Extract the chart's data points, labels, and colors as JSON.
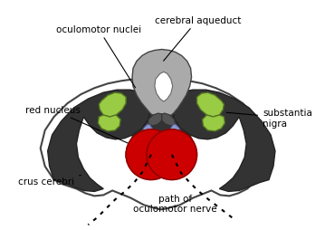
{
  "background_color": "#ffffff",
  "outline_color": "#555555",
  "dark_region_color": "#333333",
  "red_nucleus_color": "#cc0000",
  "green_region_color": "#99cc44",
  "blue_region_color": "#8888cc",
  "gray_region_color": "#aaaaaa",
  "dark_gray_color": "#555555",
  "text_color": "#000000",
  "labels": {
    "cerebral_aqueduct": "cerebral aqueduct",
    "oculomotor_nuclei": "oculomotor nuclei",
    "red_nucleus": "red nucleus",
    "substantia_nigra": "substantia\nnigra",
    "crus_cerebri": "crus cerebri",
    "path_oculomotor": "path of\noculomotor nerve"
  },
  "figsize": [
    3.59,
    2.55
  ],
  "dpi": 100
}
